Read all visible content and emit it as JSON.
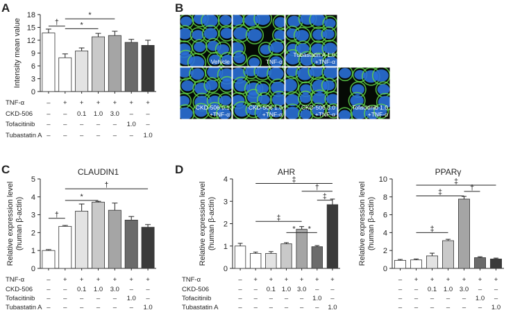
{
  "panel_letters": {
    "a": "A",
    "b": "B",
    "c": "C",
    "d": "D"
  },
  "treatment_table": {
    "row_labels": [
      "TNF-α",
      "CKD-506",
      "Tofacitinib",
      "Tubastatin A"
    ],
    "columns": [
      [
        "–",
        "–",
        "–",
        "–"
      ],
      [
        "+",
        "–",
        "–",
        "–"
      ],
      [
        "+",
        "0.1",
        "–",
        "–"
      ],
      [
        "+",
        "1.0",
        "–",
        "–"
      ],
      [
        "+",
        "3.0",
        "–",
        "–"
      ],
      [
        "+",
        "–",
        "1.0",
        "–"
      ],
      [
        "+",
        "–",
        "–",
        "1.0"
      ]
    ]
  },
  "microscopy": {
    "tiles": [
      {
        "lines": [
          "Vehicle"
        ]
      },
      {
        "lines": [
          "TNF-α"
        ]
      },
      {
        "lines": [
          "Tubastatin A 1.0",
          "+TNF-α"
        ]
      },
      {
        "lines": [
          "CKD-506 0.1",
          "+TNF-α"
        ]
      },
      {
        "lines": [
          "CKD-506 1.0",
          "+TNF-α"
        ]
      },
      {
        "lines": [
          "CKD-506 3.0",
          "+TNF-α"
        ]
      },
      {
        "lines": [
          "Tofacitinib 1.0",
          "+TNF-α"
        ]
      }
    ],
    "colors": {
      "nuclei": "#2a6fd6",
      "membrane": "#5fd24a",
      "background": "#050a05"
    }
  },
  "bar_colors": [
    "#ffffff",
    "#ffffff",
    "#e3e3e3",
    "#c9c9c9",
    "#a5a5a5",
    "#6b6b6b",
    "#3a3a3a"
  ],
  "chart_data": [
    {
      "id": "A",
      "type": "bar",
      "title": "",
      "ylabel": "Intensity mean value",
      "ylim": [
        0,
        18
      ],
      "yticks": [
        "0",
        "3",
        "6",
        "9",
        "12",
        "15",
        "18"
      ],
      "values": [
        13.7,
        7.9,
        9.5,
        12.8,
        13.1,
        11.5,
        10.8
      ],
      "errors": [
        0.9,
        0.9,
        0.7,
        0.8,
        1.0,
        0.7,
        1.2
      ],
      "annotations": [
        {
          "symbol": "†",
          "from": 0,
          "to": 1,
          "y": 15.3
        },
        {
          "symbol": "*",
          "from": 1,
          "to": 4,
          "y": 17.0
        },
        {
          "symbol": "*",
          "from": 1,
          "to": 3,
          "y": 14.7
        }
      ]
    },
    {
      "id": "C",
      "type": "bar",
      "title": "CLAUDIN1",
      "ylabel": "Relative expression level\n(human β-actin)",
      "ylim": [
        0,
        5
      ],
      "yticks": [
        "0",
        "1",
        "2",
        "3",
        "4",
        "5"
      ],
      "values": [
        1.0,
        2.35,
        3.2,
        3.7,
        3.25,
        2.7,
        2.3
      ],
      "errors": [
        0.05,
        0.05,
        0.4,
        0.05,
        0.4,
        0.2,
        0.15
      ],
      "annotations": [
        {
          "symbol": "†",
          "from": 0,
          "to": 1,
          "y": 2.8
        },
        {
          "symbol": "*",
          "from": 1,
          "to": 3,
          "y": 3.8
        },
        {
          "symbol": "†",
          "from": 1,
          "to": 6,
          "y": 4.45
        }
      ]
    },
    {
      "id": "D1",
      "type": "bar",
      "title": "AHR",
      "ylabel": "Relative expression level\n(human β-actin)",
      "ylim": [
        0,
        4
      ],
      "yticks": [
        "0",
        "1",
        "2",
        "3",
        "4"
      ],
      "values": [
        1.0,
        0.67,
        0.67,
        1.1,
        1.75,
        0.97,
        2.85
      ],
      "errors": [
        0.12,
        0.06,
        0.08,
        0.05,
        0.12,
        0.05,
        0.25
      ],
      "annotations": [
        {
          "symbol": "‡",
          "from": 1,
          "to": 6,
          "y": 3.8
        },
        {
          "symbol": "†",
          "from": 4,
          "to": 6,
          "y": 3.45
        },
        {
          "symbol": "‡",
          "from": 5,
          "to": 6,
          "y": 3.05
        },
        {
          "symbol": "‡",
          "from": 1,
          "to": 4,
          "y": 2.1
        },
        {
          "symbol": "*",
          "from": 3,
          "to": 4,
          "y": 1.6
        },
        {
          "symbol": "*",
          "from": 4,
          "to": 5,
          "y": 1.6
        }
      ]
    },
    {
      "id": "D2",
      "type": "bar",
      "title": "PPARγ",
      "ylabel": "Relative expression level\n(human β-actin)",
      "ylim": [
        0,
        10
      ],
      "yticks": [
        "0",
        "2",
        "4",
        "6",
        "8",
        "10"
      ],
      "values": [
        0.9,
        0.95,
        1.4,
        3.1,
        7.75,
        1.2,
        1.05
      ],
      "errors": [
        0.1,
        0.1,
        0.3,
        0.15,
        0.3,
        0.1,
        0.1
      ],
      "annotations": [
        {
          "symbol": "‡",
          "from": 1,
          "to": 6,
          "y": 9.3
        },
        {
          "symbol": "†",
          "from": 4,
          "to": 5,
          "y": 8.6
        },
        {
          "symbol": "‡",
          "from": 1,
          "to": 4,
          "y": 8.1
        },
        {
          "symbol": "‡",
          "from": 1,
          "to": 3,
          "y": 4.0
        }
      ]
    }
  ]
}
